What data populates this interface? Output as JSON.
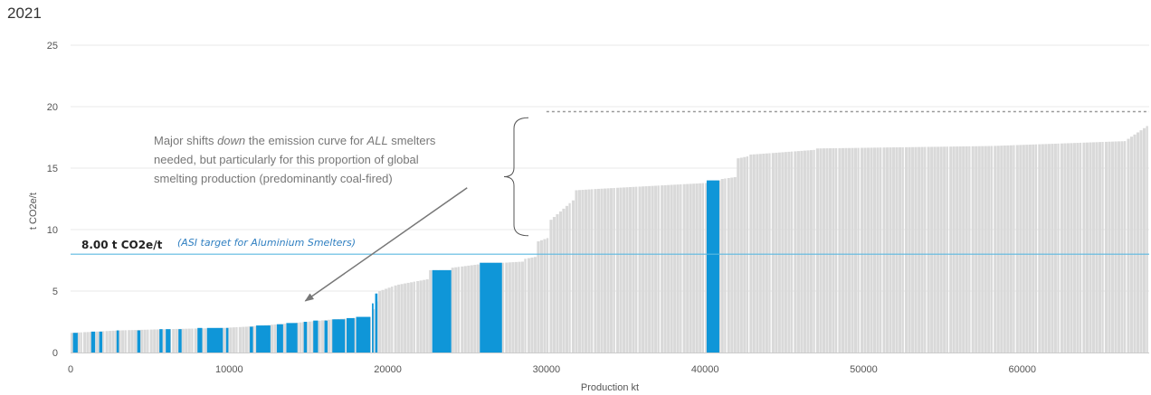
{
  "header": {
    "year": "2021"
  },
  "chart_data": {
    "type": "bar",
    "subtype": "cost-curve (bar width = production)",
    "xlabel": "Production kt",
    "ylabel": "t CO2e/t",
    "xlim": [
      0,
      68000
    ],
    "ylim": [
      0,
      25
    ],
    "x_ticks": [
      0,
      10000,
      20000,
      30000,
      40000,
      50000,
      60000
    ],
    "y_ticks": [
      0,
      5,
      10,
      15,
      20,
      25
    ],
    "grid": "horizontal",
    "colors": {
      "default": "#d9d9d9",
      "highlight": "#0f96d8",
      "target": "#5bb8e0",
      "grid": "#e8e8e8"
    },
    "segments": [
      {
        "x0": 0,
        "x1": 3000,
        "y0": 1.6,
        "y1": 1.8
      },
      {
        "x0": 3000,
        "x1": 6000,
        "y0": 1.8,
        "y1": 1.9
      },
      {
        "x0": 6000,
        "x1": 9500,
        "y0": 1.9,
        "y1": 2.0
      },
      {
        "x0": 9500,
        "x1": 11000,
        "y0": 2.0,
        "y1": 2.1
      },
      {
        "x0": 11000,
        "x1": 14000,
        "y0": 2.1,
        "y1": 2.4
      },
      {
        "x0": 14000,
        "x1": 16500,
        "y0": 2.4,
        "y1": 2.7
      },
      {
        "x0": 16500,
        "x1": 18900,
        "y0": 2.7,
        "y1": 2.9
      },
      {
        "x0": 18900,
        "x1": 19400,
        "y0": 3.2,
        "y1": 4.8
      },
      {
        "x0": 19400,
        "x1": 20500,
        "y0": 5.0,
        "y1": 5.5
      },
      {
        "x0": 20500,
        "x1": 22600,
        "y0": 5.5,
        "y1": 6.0
      },
      {
        "x0": 22600,
        "x1": 24000,
        "y0": 6.7,
        "y1": 6.7
      },
      {
        "x0": 24000,
        "x1": 25800,
        "y0": 6.9,
        "y1": 7.2
      },
      {
        "x0": 25800,
        "x1": 27200,
        "y0": 7.3,
        "y1": 7.3
      },
      {
        "x0": 27200,
        "x1": 28500,
        "y0": 7.3,
        "y1": 7.4
      },
      {
        "x0": 28500,
        "x1": 29300,
        "y0": 7.6,
        "y1": 7.8
      },
      {
        "x0": 29300,
        "x1": 30200,
        "y0": 9.0,
        "y1": 9.4
      },
      {
        "x0": 30200,
        "x1": 31800,
        "y0": 10.8,
        "y1": 12.6
      },
      {
        "x0": 31800,
        "x1": 33000,
        "y0": 13.2,
        "y1": 13.3
      },
      {
        "x0": 33000,
        "x1": 40100,
        "y0": 13.3,
        "y1": 13.8
      },
      {
        "x0": 40100,
        "x1": 40900,
        "y0": 14.0,
        "y1": 14.0
      },
      {
        "x0": 40900,
        "x1": 42000,
        "y0": 14.1,
        "y1": 14.3
      },
      {
        "x0": 42000,
        "x1": 42800,
        "y0": 15.8,
        "y1": 16.0
      },
      {
        "x0": 42800,
        "x1": 47000,
        "y0": 16.1,
        "y1": 16.5
      },
      {
        "x0": 47000,
        "x1": 58000,
        "y0": 16.6,
        "y1": 16.8
      },
      {
        "x0": 58000,
        "x1": 66500,
        "y0": 16.8,
        "y1": 17.2
      },
      {
        "x0": 66500,
        "x1": 68000,
        "y0": 17.3,
        "y1": 18.6
      }
    ],
    "highlighted_bars": [
      {
        "x0": 150,
        "x1": 450,
        "y": 1.6
      },
      {
        "x0": 1300,
        "x1": 1550,
        "y": 1.7
      },
      {
        "x0": 1800,
        "x1": 2000,
        "y": 1.7
      },
      {
        "x0": 2900,
        "x1": 3050,
        "y": 1.8
      },
      {
        "x0": 4200,
        "x1": 4400,
        "y": 1.8
      },
      {
        "x0": 5600,
        "x1": 5800,
        "y": 1.9
      },
      {
        "x0": 6000,
        "x1": 6300,
        "y": 1.9
      },
      {
        "x0": 6800,
        "x1": 7000,
        "y": 1.9
      },
      {
        "x0": 8000,
        "x1": 8300,
        "y": 2.0
      },
      {
        "x0": 8600,
        "x1": 9600,
        "y": 2.0
      },
      {
        "x0": 9800,
        "x1": 9950,
        "y": 2.0
      },
      {
        "x0": 11300,
        "x1": 11500,
        "y": 2.1
      },
      {
        "x0": 11700,
        "x1": 12600,
        "y": 2.2
      },
      {
        "x0": 13000,
        "x1": 13400,
        "y": 2.3
      },
      {
        "x0": 13600,
        "x1": 14300,
        "y": 2.4
      },
      {
        "x0": 14700,
        "x1": 14900,
        "y": 2.5
      },
      {
        "x0": 15300,
        "x1": 15600,
        "y": 2.6
      },
      {
        "x0": 16000,
        "x1": 16200,
        "y": 2.6
      },
      {
        "x0": 16500,
        "x1": 17300,
        "y": 2.7
      },
      {
        "x0": 17400,
        "x1": 17900,
        "y": 2.8
      },
      {
        "x0": 18000,
        "x1": 18900,
        "y": 2.9
      },
      {
        "x0": 19000,
        "x1": 19100,
        "y": 4.0
      },
      {
        "x0": 19200,
        "x1": 19350,
        "y": 4.8
      },
      {
        "x0": 22800,
        "x1": 24000,
        "y": 6.7
      },
      {
        "x0": 25800,
        "x1": 27200,
        "y": 7.3
      },
      {
        "x0": 40100,
        "x1": 40900,
        "y": 14.0
      }
    ],
    "target_line": {
      "value": 8.0,
      "label": "8.00 t CO2e/t",
      "note": "(ASI target for Aluminium Smelters)"
    },
    "annotation": {
      "lines": [
        [
          {
            "text": "Major shifts ",
            "italic": false
          },
          {
            "text": "down",
            "italic": true
          },
          {
            "text": " the emission curve for ",
            "italic": false
          },
          {
            "text": "ALL",
            "italic": true
          },
          {
            "text": " smelters",
            "italic": false
          }
        ],
        [
          {
            "text": "needed, but particularly for this proportion of global",
            "italic": false
          }
        ],
        [
          {
            "text": "smelting production (predominantly coal-fired)",
            "italic": false
          }
        ]
      ],
      "brace_y_range": [
        9.5,
        19.1
      ],
      "dashed_line_y": 19.6,
      "dashed_line_x_range": [
        30000,
        68000
      ],
      "arrow_from_x": 25000,
      "arrow_from_y": 13.4,
      "arrow_to_x": 14800,
      "arrow_to_y": 4.2
    }
  }
}
